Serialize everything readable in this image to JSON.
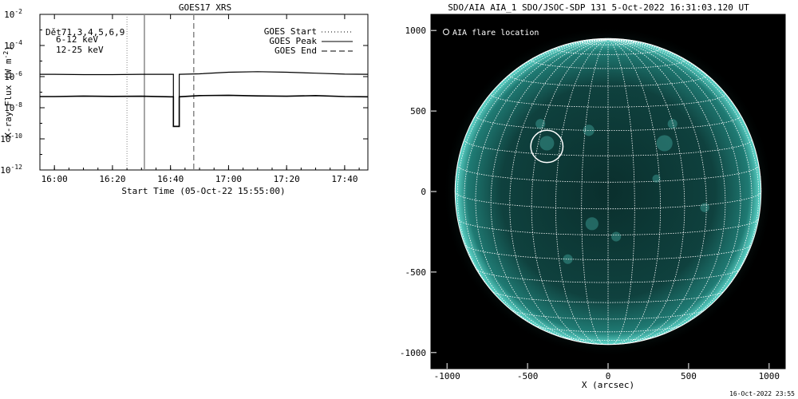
{
  "chart_data": [
    {
      "type": "line",
      "title": "GOES17 XRS",
      "xlabel": "Start Time (05-Oct-22 15:55:00)",
      "ylabel": "X-ray Flux (W m^-2)",
      "ylabel_parts": {
        "base": "X-ray Flux (W m",
        "sup": "-2",
        "end": ")"
      },
      "yscale": "log",
      "xlim": [
        "15:55",
        "17:48"
      ],
      "ylim": [
        1e-12,
        0.01
      ],
      "x_ticks": [
        "16:00",
        "16:20",
        "16:40",
        "17:00",
        "17:20",
        "17:40"
      ],
      "y_ticks": [
        {
          "exp": -2,
          "label": "10",
          "sup": "-2"
        },
        {
          "exp": -4,
          "label": "10",
          "sup": "-4"
        },
        {
          "exp": -6,
          "label": "10",
          "sup": "-6"
        },
        {
          "exp": -8,
          "label": "10",
          "sup": "-8"
        },
        {
          "exp": -10,
          "label": "10",
          "sup": "-10"
        },
        {
          "exp": -12,
          "label": "10",
          "sup": "-12"
        }
      ],
      "info_lines": [
        {
          "text": "Dět71,3,4,5,6,9",
          "color": "#000000"
        },
        {
          "text": "6-12 keV",
          "color": "#e000e0"
        },
        {
          "text": "12-25 keV",
          "color": "#00cc00"
        }
      ],
      "legend": [
        {
          "label": "GOES Start",
          "style": "dotted"
        },
        {
          "label": "GOES Peak",
          "style": "solid"
        },
        {
          "label": "GOES End",
          "style": "dashed"
        }
      ],
      "event_lines": [
        {
          "name": "GOES Start",
          "x": "16:25",
          "style": "dotted"
        },
        {
          "name": "GOES Peak",
          "x": "16:31",
          "style": "solid"
        },
        {
          "name": "GOES End",
          "x": "16:48",
          "style": "dashed"
        }
      ],
      "series": [
        {
          "color": "#000000",
          "x": [
            "15:55",
            "16:00",
            "16:10",
            "16:20",
            "16:30",
            "16:40",
            "16:41",
            "16:41",
            "16:43",
            "16:43",
            "16:50",
            "17:00",
            "17:10",
            "17:20",
            "17:30",
            "17:40",
            "17:48"
          ],
          "log10_y": [
            -5.85,
            -5.85,
            -5.87,
            -5.87,
            -5.85,
            -5.85,
            -5.85,
            -9.2,
            -9.2,
            -5.85,
            -5.82,
            -5.72,
            -5.68,
            -5.72,
            -5.78,
            -5.84,
            -5.85
          ]
        },
        {
          "color": "#000000",
          "x": [
            "15:55",
            "16:00",
            "16:10",
            "16:20",
            "16:30",
            "16:40",
            "16:41",
            "16:41",
            "16:43",
            "16:43",
            "16:50",
            "17:00",
            "17:10",
            "17:20",
            "17:30",
            "17:40",
            "17:48"
          ],
          "log10_y": [
            -7.28,
            -7.28,
            -7.25,
            -7.27,
            -7.26,
            -7.3,
            -7.3,
            -9.2,
            -9.2,
            -7.3,
            -7.22,
            -7.2,
            -7.24,
            -7.26,
            -7.22,
            -7.28,
            -7.3
          ]
        }
      ]
    },
    {
      "type": "heatmap",
      "title": "SDO/AIA AIA_1 SDO/JSOC-SDP 131  5-Oct-2022 16:31:03.120 UT",
      "xlabel": "X (arcsec)",
      "ylabel": "",
      "xlim": [
        -1100,
        1100
      ],
      "ylim": [
        -1100,
        1100
      ],
      "x_ticks": [
        -1000,
        -500,
        0,
        500,
        1000
      ],
      "y_ticks": [
        1000,
        500,
        0,
        -500,
        -1000
      ],
      "legend": [
        {
          "label": "AIA flare location",
          "marker": "circle"
        }
      ],
      "flare_location": {
        "x": -380,
        "y": 280
      },
      "disk_radius_arcsec": 950,
      "grid": true,
      "colormap": "teal"
    }
  ],
  "footer": {
    "timestamp": "16-Oct-2022 23:55"
  },
  "colors": {
    "aia_bg": "#000000",
    "aia_disk": "#0d3a38",
    "aia_bright": "#3fbab0",
    "grid_line": "#ffffff"
  }
}
